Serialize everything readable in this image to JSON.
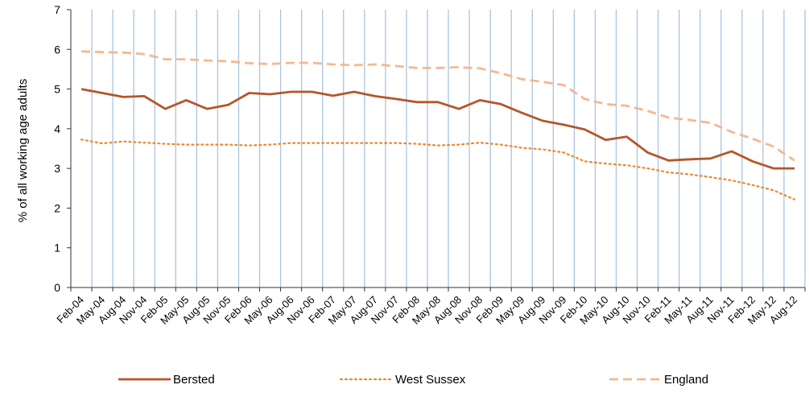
{
  "chart_data": {
    "type": "line",
    "ylabel": "% of all working age adults",
    "xlabel": "",
    "ylim": [
      0,
      7
    ],
    "yticks": [
      0,
      1,
      2,
      3,
      4,
      5,
      6,
      7
    ],
    "grid": "vertical",
    "legend_position": "bottom",
    "x": [
      "Feb-04",
      "May-04",
      "Aug-04",
      "Nov-04",
      "Feb-05",
      "May-05",
      "Aug-05",
      "Nov-05",
      "Feb-06",
      "May-06",
      "Aug-06",
      "Nov-06",
      "Feb-07",
      "May-07",
      "Aug-07",
      "Nov-07",
      "Feb-08",
      "May-08",
      "Aug-08",
      "Nov-08",
      "Feb-09",
      "May-09",
      "Aug-09",
      "Nov-09",
      "Feb-10",
      "May-10",
      "Aug-10",
      "Nov-10",
      "Feb-11",
      "May-11",
      "Aug-11",
      "Nov-11",
      "Feb-12",
      "May-12",
      "Aug-12"
    ],
    "series": [
      {
        "name": "Bersted",
        "color": "#b5562a",
        "style": "solid",
        "values": [
          5.0,
          4.9,
          4.8,
          4.82,
          4.5,
          4.72,
          4.5,
          4.6,
          4.9,
          4.87,
          4.93,
          4.93,
          4.83,
          4.93,
          4.82,
          4.75,
          4.67,
          4.67,
          4.5,
          4.72,
          4.62,
          4.4,
          4.2,
          4.1,
          3.98,
          3.72,
          3.8,
          3.4,
          3.2,
          3.23,
          3.25,
          3.43,
          3.18,
          3.0,
          3.0
        ]
      },
      {
        "name": "West Sussex",
        "color": "#e8892e",
        "style": "dotted",
        "values": [
          3.73,
          3.63,
          3.68,
          3.65,
          3.62,
          3.6,
          3.6,
          3.6,
          3.58,
          3.6,
          3.64,
          3.64,
          3.64,
          3.64,
          3.64,
          3.64,
          3.62,
          3.58,
          3.6,
          3.65,
          3.6,
          3.52,
          3.48,
          3.4,
          3.18,
          3.12,
          3.08,
          3.0,
          2.9,
          2.85,
          2.78,
          2.7,
          2.58,
          2.45,
          2.22
        ]
      },
      {
        "name": "England",
        "color": "#f4b88f",
        "style": "dashed",
        "values": [
          5.95,
          5.93,
          5.92,
          5.88,
          5.75,
          5.75,
          5.72,
          5.7,
          5.65,
          5.63,
          5.66,
          5.66,
          5.62,
          5.6,
          5.62,
          5.58,
          5.53,
          5.53,
          5.55,
          5.52,
          5.4,
          5.25,
          5.18,
          5.1,
          4.75,
          4.62,
          4.58,
          4.45,
          4.28,
          4.22,
          4.15,
          3.92,
          3.75,
          3.55,
          3.2
        ]
      }
    ]
  }
}
